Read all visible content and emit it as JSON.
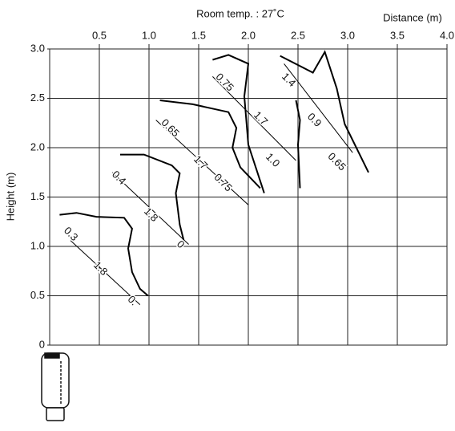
{
  "chart_data": {
    "type": "line",
    "title": "Room temp. : 27˚C",
    "xlabel": "Distance (m)",
    "ylabel": "Height (m)",
    "xlim": [
      0,
      4
    ],
    "xticks": [
      0.5,
      {
        "value": 1,
        "label": "1.0"
      },
      1.5,
      {
        "value": 2,
        "label": "2.0"
      },
      2.5,
      {
        "value": 3,
        "label": "3.0"
      },
      3.5,
      {
        "value": 4,
        "label": "4.0"
      }
    ],
    "ylim": [
      0,
      3
    ],
    "yticks": [
      0,
      0.5,
      {
        "value": 1,
        "label": "1.0"
      },
      1.5,
      {
        "value": 2,
        "label": "2.0"
      },
      2.5,
      {
        "value": 3,
        "label": "3.0"
      }
    ],
    "grid": true,
    "series": [
      {
        "color": "#000000",
        "x": [
          0.1,
          0.27,
          0.47,
          0.75,
          0.83,
          0.79,
          0.83,
          0.91,
          0.99
        ],
        "values": [
          1.32,
          1.34,
          1.3,
          1.29,
          1.18,
          0.98,
          0.74,
          0.57,
          0.5
        ]
      },
      {
        "color": "#000000",
        "x": [
          0.21,
          0.91
        ],
        "values": [
          1.06,
          0.41
        ]
      },
      {
        "color": "#000000",
        "x": [
          0.71,
          0.95,
          1.23,
          1.31,
          1.27,
          1.31,
          1.35
        ],
        "values": [
          1.93,
          1.93,
          1.82,
          1.74,
          1.54,
          1.22,
          1.06
        ]
      },
      {
        "color": "#000000",
        "x": [
          0.63,
          1.4
        ],
        "values": [
          1.75,
          1.02
        ]
      },
      {
        "color": "#000000",
        "x": [
          1.11,
          1.44,
          1.8,
          1.88,
          1.84,
          1.92,
          2.12
        ],
        "values": [
          2.48,
          2.44,
          2.36,
          2.2,
          2.0,
          1.8,
          1.59
        ]
      },
      {
        "color": "#000000",
        "x": [
          1.07,
          2.0
        ],
        "values": [
          2.28,
          1.42
        ]
      },
      {
        "color": "#000000",
        "x": [
          1.64,
          1.8,
          2.0,
          1.96,
          2.0,
          2.16
        ],
        "values": [
          2.89,
          2.94,
          2.85,
          2.52,
          2.03,
          1.54
        ]
      },
      {
        "color": "#000000",
        "x": [
          1.64,
          2.48
        ],
        "values": [
          2.72,
          1.87
        ]
      },
      {
        "color": "#000000",
        "x": [
          2.48,
          2.52,
          2.5,
          2.52
        ],
        "values": [
          2.48,
          2.28,
          2.03,
          1.59
        ]
      },
      {
        "color": "#000000",
        "x": [
          2.32,
          2.65,
          2.77,
          2.89,
          2.97,
          3.21
        ],
        "values": [
          2.93,
          2.76,
          2.97,
          2.6,
          2.24,
          1.75
        ]
      },
      {
        "color": "#000000",
        "x": [
          2.36,
          3.05
        ],
        "values": [
          2.85,
          1.95
        ]
      }
    ],
    "annotations": [
      "0.3",
      "1.8",
      "0.",
      "0.4",
      "1.8",
      "0",
      "0.65",
      "1.7",
      "0.75",
      "0.75",
      "1.7",
      "1.0",
      "1.4",
      "0.9",
      "0.65"
    ]
  }
}
